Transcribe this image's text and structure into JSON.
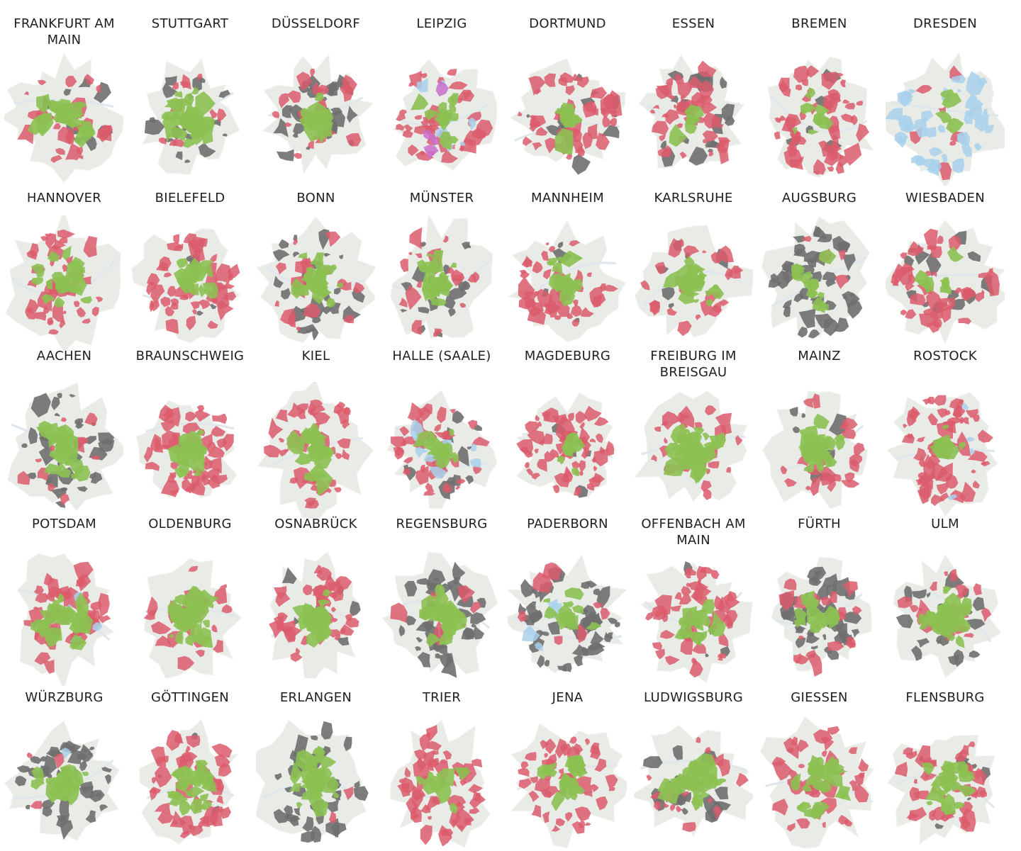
{
  "colors": {
    "background": "#ffffff",
    "city_area": "#e9ece6",
    "city_area_edge": "#f7f8f5",
    "green": "#8cc152",
    "red": "#dc5c6c",
    "gray": "#6f6f6f",
    "light_blue": "#a8d1ec",
    "purple": "#c86fc9",
    "water": "#dfe6ec"
  },
  "cities": [
    {
      "name": "FRANKFURT AM MAIN",
      "mix": {
        "green": 0.3,
        "red": 0.35,
        "gray": 0.12,
        "light_blue": 0.0,
        "purple": 0.0
      }
    },
    {
      "name": "STUTTGART",
      "mix": {
        "green": 0.55,
        "red": 0.15,
        "gray": 0.25,
        "light_blue": 0.0,
        "purple": 0.0
      }
    },
    {
      "name": "DÜSSELDORF",
      "mix": {
        "green": 0.25,
        "red": 0.3,
        "gray": 0.4,
        "light_blue": 0.0,
        "purple": 0.0
      }
    },
    {
      "name": "LEIPZIG",
      "mix": {
        "green": 0.2,
        "red": 0.55,
        "gray": 0.0,
        "light_blue": 0.12,
        "purple": 0.05
      }
    },
    {
      "name": "DORTMUND",
      "mix": {
        "green": 0.12,
        "red": 0.7,
        "gray": 0.15,
        "light_blue": 0.0,
        "purple": 0.0
      }
    },
    {
      "name": "ESSEN",
      "mix": {
        "green": 0.08,
        "red": 0.6,
        "gray": 0.3,
        "light_blue": 0.0,
        "purple": 0.0
      }
    },
    {
      "name": "BREMEN",
      "mix": {
        "green": 0.15,
        "red": 0.7,
        "gray": 0.1,
        "light_blue": 0.0,
        "purple": 0.0
      }
    },
    {
      "name": "DRESDEN",
      "mix": {
        "green": 0.05,
        "red": 0.1,
        "gray": 0.0,
        "light_blue": 0.6,
        "purple": 0.0
      }
    },
    {
      "name": "HANNOVER",
      "mix": {
        "green": 0.35,
        "red": 0.6,
        "gray": 0.0,
        "light_blue": 0.0,
        "purple": 0.0
      }
    },
    {
      "name": "BIELEFELD",
      "mix": {
        "green": 0.2,
        "red": 0.65,
        "gray": 0.05,
        "light_blue": 0.0,
        "purple": 0.0
      }
    },
    {
      "name": "BONN",
      "mix": {
        "green": 0.4,
        "red": 0.25,
        "gray": 0.35,
        "light_blue": 0.0,
        "purple": 0.0
      }
    },
    {
      "name": "MÜNSTER",
      "mix": {
        "green": 0.35,
        "red": 0.35,
        "gray": 0.25,
        "light_blue": 0.0,
        "purple": 0.0
      }
    },
    {
      "name": "MANNHEIM",
      "mix": {
        "green": 0.3,
        "red": 0.6,
        "gray": 0.05,
        "light_blue": 0.0,
        "purple": 0.0
      }
    },
    {
      "name": "KARLSRUHE",
      "mix": {
        "green": 0.55,
        "red": 0.35,
        "gray": 0.08,
        "light_blue": 0.0,
        "purple": 0.0
      }
    },
    {
      "name": "AUGSBURG",
      "mix": {
        "green": 0.2,
        "red": 0.05,
        "gray": 0.6,
        "light_blue": 0.0,
        "purple": 0.0
      }
    },
    {
      "name": "WIESBADEN",
      "mix": {
        "green": 0.1,
        "red": 0.6,
        "gray": 0.2,
        "light_blue": 0.0,
        "purple": 0.0
      }
    },
    {
      "name": "AACHEN",
      "mix": {
        "green": 0.35,
        "red": 0.15,
        "gray": 0.45,
        "light_blue": 0.0,
        "purple": 0.0
      }
    },
    {
      "name": "BRAUNSCHWEIG",
      "mix": {
        "green": 0.25,
        "red": 0.7,
        "gray": 0.0,
        "light_blue": 0.0,
        "purple": 0.0
      }
    },
    {
      "name": "KIEL",
      "mix": {
        "green": 0.35,
        "red": 0.6,
        "gray": 0.0,
        "light_blue": 0.0,
        "purple": 0.0
      }
    },
    {
      "name": "HALLE (SAALE)",
      "mix": {
        "green": 0.2,
        "red": 0.55,
        "gray": 0.15,
        "light_blue": 0.1,
        "purple": 0.0
      }
    },
    {
      "name": "MAGDEBURG",
      "mix": {
        "green": 0.1,
        "red": 0.8,
        "gray": 0.05,
        "light_blue": 0.0,
        "purple": 0.0
      }
    },
    {
      "name": "FREIBURG IM BREISGAU",
      "mix": {
        "green": 0.6,
        "red": 0.35,
        "gray": 0.0,
        "light_blue": 0.0,
        "purple": 0.0
      }
    },
    {
      "name": "MAINZ",
      "mix": {
        "green": 0.55,
        "red": 0.35,
        "gray": 0.1,
        "light_blue": 0.0,
        "purple": 0.0
      }
    },
    {
      "name": "ROSTOCK",
      "mix": {
        "green": 0.08,
        "red": 0.85,
        "gray": 0.0,
        "light_blue": 0.05,
        "purple": 0.0
      }
    },
    {
      "name": "POTSDAM",
      "mix": {
        "green": 0.3,
        "red": 0.6,
        "gray": 0.0,
        "light_blue": 0.05,
        "purple": 0.0
      }
    },
    {
      "name": "OLDENBURG",
      "mix": {
        "green": 0.65,
        "red": 0.35,
        "gray": 0.0,
        "light_blue": 0.0,
        "purple": 0.0
      }
    },
    {
      "name": "OSNABRÜCK",
      "mix": {
        "green": 0.35,
        "red": 0.55,
        "gray": 0.08,
        "light_blue": 0.0,
        "purple": 0.0
      }
    },
    {
      "name": "REGENSBURG",
      "mix": {
        "green": 0.35,
        "red": 0.1,
        "gray": 0.55,
        "light_blue": 0.0,
        "purple": 0.0
      }
    },
    {
      "name": "PADERBORN",
      "mix": {
        "green": 0.15,
        "red": 0.1,
        "gray": 0.7,
        "light_blue": 0.05,
        "purple": 0.0
      }
    },
    {
      "name": "OFFENBACH AM MAIN",
      "mix": {
        "green": 0.2,
        "red": 0.65,
        "gray": 0.1,
        "light_blue": 0.0,
        "purple": 0.0
      }
    },
    {
      "name": "FÜRTH",
      "mix": {
        "green": 0.2,
        "red": 0.25,
        "gray": 0.55,
        "light_blue": 0.0,
        "purple": 0.0
      }
    },
    {
      "name": "ULM",
      "mix": {
        "green": 0.45,
        "red": 0.3,
        "gray": 0.25,
        "light_blue": 0.0,
        "purple": 0.0
      }
    },
    {
      "name": "WÜRZBURG",
      "mix": {
        "green": 0.35,
        "red": 0.05,
        "gray": 0.55,
        "light_blue": 0.03,
        "purple": 0.0
      }
    },
    {
      "name": "GÖTTINGEN",
      "mix": {
        "green": 0.3,
        "red": 0.6,
        "gray": 0.05,
        "light_blue": 0.0,
        "purple": 0.0
      }
    },
    {
      "name": "ERLANGEN",
      "mix": {
        "green": 0.45,
        "red": 0.05,
        "gray": 0.5,
        "light_blue": 0.0,
        "purple": 0.0
      }
    },
    {
      "name": "TRIER",
      "mix": {
        "green": 0.15,
        "red": 0.8,
        "gray": 0.0,
        "light_blue": 0.0,
        "purple": 0.0
      }
    },
    {
      "name": "JENA",
      "mix": {
        "green": 0.25,
        "red": 0.7,
        "gray": 0.0,
        "light_blue": 0.0,
        "purple": 0.0
      }
    },
    {
      "name": "LUDWIGSBURG",
      "mix": {
        "green": 0.45,
        "red": 0.3,
        "gray": 0.25,
        "light_blue": 0.0,
        "purple": 0.0
      }
    },
    {
      "name": "GIESSEN",
      "mix": {
        "green": 0.35,
        "red": 0.6,
        "gray": 0.0,
        "light_blue": 0.0,
        "purple": 0.0
      }
    },
    {
      "name": "FLENSBURG",
      "mix": {
        "green": 0.3,
        "red": 0.55,
        "gray": 0.1,
        "light_blue": 0.0,
        "purple": 0.0
      }
    }
  ]
}
